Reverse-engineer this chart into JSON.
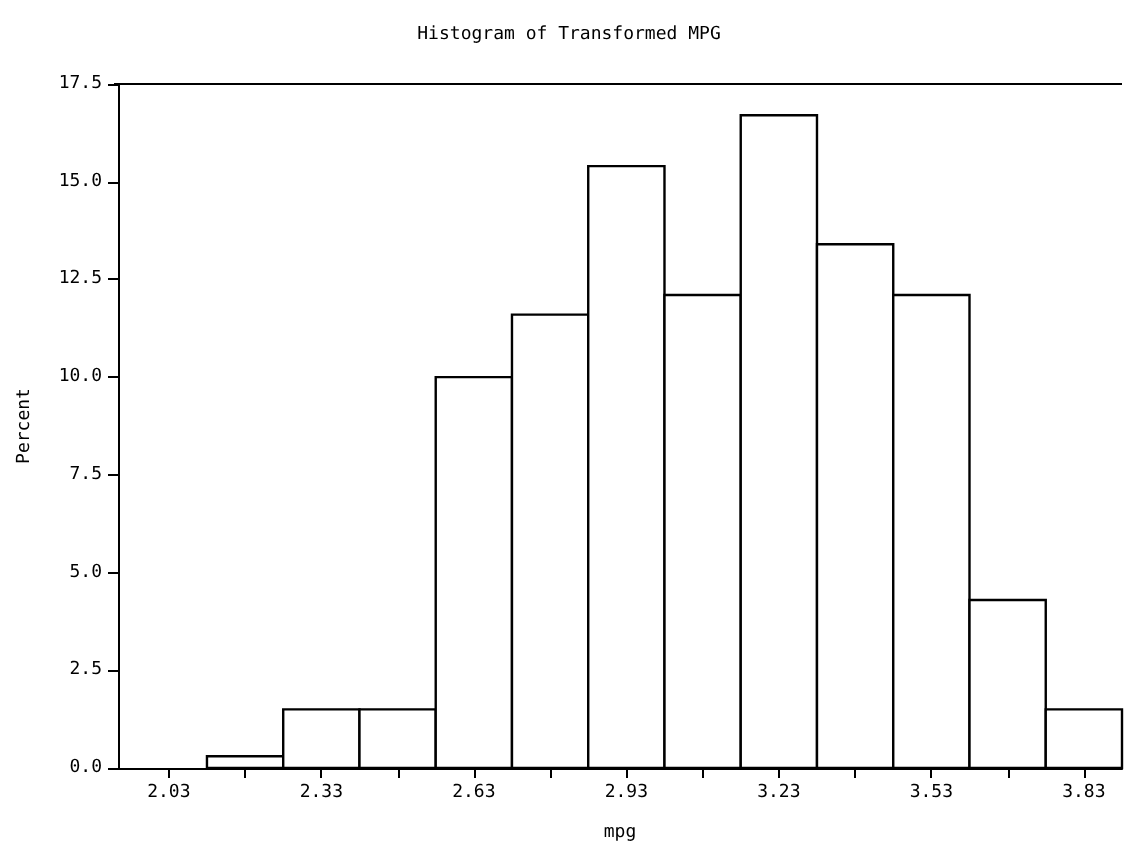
{
  "chart_data": {
    "type": "histogram",
    "title": "Histogram of Transformed MPG",
    "xlabel": "mpg",
    "ylabel": "Percent",
    "bins": [
      2.105,
      2.255,
      2.405,
      2.555,
      2.705,
      2.855,
      3.005,
      3.155,
      3.305,
      3.455,
      3.605,
      3.755,
      3.905
    ],
    "values": [
      0.3,
      1.5,
      1.5,
      10.0,
      11.6,
      15.4,
      12.1,
      16.7,
      13.4,
      12.1,
      4.3,
      1.5
    ],
    "color": "#ffffff",
    "xlim": [
      1.93,
      3.905
    ],
    "xticks": [
      2.03,
      {
        "value": 2.18,
        "label": null
      },
      2.33,
      {
        "value": 2.48,
        "label": null
      },
      2.63,
      {
        "value": 2.78,
        "label": null
      },
      2.93,
      {
        "value": 3.08,
        "label": null
      },
      3.23,
      {
        "value": 3.38,
        "label": null
      },
      3.53,
      {
        "value": 3.68,
        "label": null
      },
      3.83
    ],
    "ylim": [
      0,
      17.5
    ],
    "yticks": [
      {
        "value": 0,
        "label": "0.0"
      },
      2.5,
      {
        "value": 5,
        "label": "5.0"
      },
      7.5,
      {
        "value": 10,
        "label": "10.0"
      },
      12.5,
      {
        "value": 15,
        "label": "15.0"
      },
      17.5
    ],
    "grid": false
  }
}
